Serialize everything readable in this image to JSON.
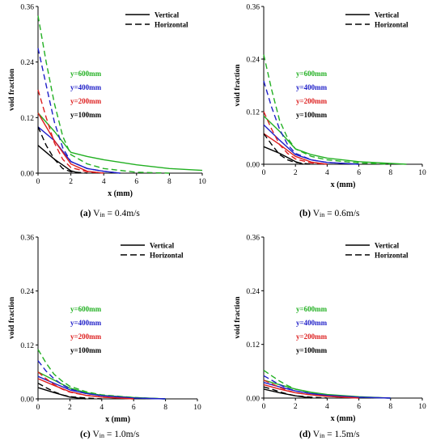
{
  "colors": {
    "y600": "#22b022",
    "y400": "#1f1fc8",
    "y200": "#dd1f1f",
    "y100": "#000000"
  },
  "chart_data": [
    {
      "type": "line",
      "caption": {
        "letter": "(a)",
        "v": "V",
        "sub": "in",
        "value": " = 0.4m/s"
      },
      "xlabel": "x (mm)",
      "ylabel": "void fraction",
      "xlim": [
        0,
        10
      ],
      "ylim": [
        0,
        0.36
      ],
      "xticks": [
        "0",
        "2",
        "4",
        "6",
        "8",
        "10"
      ],
      "yticks": [
        "0.00",
        "0.12",
        "0.24",
        "0.36"
      ],
      "legend": {
        "position": "top-right",
        "items": [
          {
            "label": "Vertical",
            "style": "solid"
          },
          {
            "label": "Horizontal",
            "style": "dashed"
          }
        ]
      },
      "labels": [
        "y=600mm",
        "y=400mm",
        "y=200mm",
        "y=100mm"
      ],
      "series": [
        {
          "key": "y600",
          "style": "solid",
          "x": [
            0,
            1,
            2,
            3,
            4,
            6,
            8,
            10
          ],
          "y": [
            0.13,
            0.09,
            0.045,
            0.036,
            0.029,
            0.018,
            0.01,
            0.006
          ]
        },
        {
          "key": "y600",
          "style": "dashed",
          "x": [
            0,
            0.5,
            1,
            1.5,
            2,
            3,
            4,
            6,
            8
          ],
          "y": [
            0.34,
            0.24,
            0.15,
            0.08,
            0.04,
            0.02,
            0.01,
            0.002,
            0
          ]
        },
        {
          "key": "y400",
          "style": "solid",
          "x": [
            0,
            1,
            2,
            3,
            4,
            5
          ],
          "y": [
            0.1,
            0.07,
            0.025,
            0.01,
            0.004,
            0
          ]
        },
        {
          "key": "y400",
          "style": "dashed",
          "x": [
            0,
            0.5,
            1,
            1.5,
            2,
            3,
            4,
            5
          ],
          "y": [
            0.27,
            0.19,
            0.11,
            0.055,
            0.025,
            0.01,
            0.004,
            0
          ]
        },
        {
          "key": "y200",
          "style": "solid",
          "x": [
            0,
            1,
            2,
            3,
            4
          ],
          "y": [
            0.13,
            0.07,
            0.02,
            0.004,
            0
          ]
        },
        {
          "key": "y200",
          "style": "dashed",
          "x": [
            0,
            0.5,
            1,
            1.5,
            2,
            3,
            4
          ],
          "y": [
            0.18,
            0.12,
            0.065,
            0.03,
            0.012,
            0.003,
            0
          ]
        },
        {
          "key": "y100",
          "style": "solid",
          "x": [
            0,
            1,
            2,
            2.5
          ],
          "y": [
            0.06,
            0.03,
            0.005,
            0
          ]
        },
        {
          "key": "y100",
          "style": "dashed",
          "x": [
            0,
            0.5,
            1,
            1.5,
            2,
            3
          ],
          "y": [
            0.1,
            0.06,
            0.03,
            0.01,
            0.003,
            0
          ]
        }
      ]
    },
    {
      "type": "line",
      "caption": {
        "letter": "(b)",
        "v": "V",
        "sub": "in",
        "value": " = 0.6m/s"
      },
      "xlabel": "x (mm)",
      "ylabel": "void fraction",
      "xlim": [
        0,
        10
      ],
      "ylim": [
        0,
        0.36
      ],
      "xticks": [
        "0",
        "2",
        "4",
        "6",
        "8",
        "10"
      ],
      "yticks": [
        "0.00",
        "0.12",
        "0.24",
        "0.36"
      ],
      "legend": {
        "position": "top-right",
        "items": [
          {
            "label": "Vertical",
            "style": "solid"
          },
          {
            "label": "Horizontal",
            "style": "dashed"
          }
        ]
      },
      "labels": [
        "y=600mm",
        "y=400mm",
        "y=200mm",
        "y=100mm"
      ],
      "series": [
        {
          "key": "y600",
          "style": "solid",
          "x": [
            0,
            1,
            2,
            3,
            4,
            6,
            8,
            9
          ],
          "y": [
            0.11,
            0.075,
            0.035,
            0.022,
            0.014,
            0.006,
            0.002,
            0
          ]
        },
        {
          "key": "y600",
          "style": "dashed",
          "x": [
            0,
            0.5,
            1,
            1.5,
            2,
            3,
            4,
            6,
            8
          ],
          "y": [
            0.25,
            0.17,
            0.1,
            0.06,
            0.035,
            0.018,
            0.01,
            0.003,
            0
          ]
        },
        {
          "key": "y400",
          "style": "solid",
          "x": [
            0,
            1,
            2,
            3,
            4,
            6
          ],
          "y": [
            0.09,
            0.055,
            0.022,
            0.01,
            0.004,
            0
          ]
        },
        {
          "key": "y400",
          "style": "dashed",
          "x": [
            0,
            0.5,
            1,
            1.5,
            2,
            3,
            4,
            6
          ],
          "y": [
            0.19,
            0.13,
            0.08,
            0.045,
            0.025,
            0.01,
            0.004,
            0
          ]
        },
        {
          "key": "y200",
          "style": "solid",
          "x": [
            0,
            1,
            2,
            3,
            4
          ],
          "y": [
            0.07,
            0.045,
            0.018,
            0.005,
            0
          ]
        },
        {
          "key": "y200",
          "style": "dashed",
          "x": [
            0,
            0.5,
            1,
            1.5,
            2,
            3,
            4
          ],
          "y": [
            0.12,
            0.08,
            0.045,
            0.025,
            0.012,
            0.003,
            0
          ]
        },
        {
          "key": "y100",
          "style": "solid",
          "x": [
            0,
            1,
            2,
            2.5
          ],
          "y": [
            0.04,
            0.025,
            0.006,
            0
          ]
        },
        {
          "key": "y100",
          "style": "dashed",
          "x": [
            0,
            0.5,
            1,
            1.5,
            2,
            3
          ],
          "y": [
            0.07,
            0.045,
            0.022,
            0.01,
            0.004,
            0
          ]
        }
      ]
    },
    {
      "type": "line",
      "caption": {
        "letter": "(c)",
        "v": "V",
        "sub": "in",
        "value": " = 1.0m/s"
      },
      "xlabel": "x (mm)",
      "ylabel": "void fraction",
      "xlim": [
        0,
        10
      ],
      "ylim": [
        0,
        0.36
      ],
      "xticks": [
        "0",
        "2",
        "4",
        "6",
        "8",
        "10"
      ],
      "yticks": [
        "0.00",
        "0.12",
        "0.24",
        "0.36"
      ],
      "legend": {
        "position": "top-right",
        "items": [
          {
            "label": "Vertical",
            "style": "solid"
          },
          {
            "label": "Horizontal",
            "style": "dashed"
          }
        ]
      },
      "labels": [
        "y=600mm",
        "y=400mm",
        "y=200mm",
        "y=100mm"
      ],
      "series": [
        {
          "key": "y600",
          "style": "solid",
          "x": [
            0,
            1,
            2,
            3,
            4,
            6,
            8
          ],
          "y": [
            0.06,
            0.042,
            0.024,
            0.014,
            0.008,
            0.003,
            0
          ]
        },
        {
          "key": "y600",
          "style": "dashed",
          "x": [
            0,
            0.5,
            1,
            1.5,
            2,
            3,
            4,
            6,
            8
          ],
          "y": [
            0.11,
            0.08,
            0.055,
            0.04,
            0.028,
            0.016,
            0.009,
            0.003,
            0
          ]
        },
        {
          "key": "y400",
          "style": "solid",
          "x": [
            0,
            1,
            2,
            3,
            4,
            6,
            8
          ],
          "y": [
            0.05,
            0.035,
            0.02,
            0.012,
            0.007,
            0.002,
            0
          ]
        },
        {
          "key": "y400",
          "style": "dashed",
          "x": [
            0,
            0.5,
            1,
            1.5,
            2,
            3,
            4,
            6,
            8
          ],
          "y": [
            0.085,
            0.062,
            0.045,
            0.032,
            0.022,
            0.012,
            0.007,
            0.002,
            0
          ]
        },
        {
          "key": "y200",
          "style": "solid",
          "x": [
            0,
            1,
            2,
            3,
            4,
            6
          ],
          "y": [
            0.045,
            0.03,
            0.016,
            0.008,
            0.004,
            0
          ]
        },
        {
          "key": "y200",
          "style": "dashed",
          "x": [
            0,
            0.5,
            1,
            1.5,
            2,
            3,
            4,
            6
          ],
          "y": [
            0.06,
            0.045,
            0.032,
            0.022,
            0.015,
            0.008,
            0.004,
            0
          ]
        },
        {
          "key": "y100",
          "style": "solid",
          "x": [
            0,
            1,
            2,
            3
          ],
          "y": [
            0.025,
            0.014,
            0.004,
            0
          ]
        },
        {
          "key": "y100",
          "style": "dashed",
          "x": [
            0,
            0.5,
            1,
            1.5,
            2,
            3,
            4
          ],
          "y": [
            0.035,
            0.025,
            0.016,
            0.009,
            0.005,
            0.002,
            0
          ]
        }
      ]
    },
    {
      "type": "line",
      "caption": {
        "letter": "(d)",
        "v": "V",
        "sub": "in",
        "value": " = 1.5m/s"
      },
      "xlabel": "x (mm)",
      "ylabel": "void fraction",
      "xlim": [
        0,
        10
      ],
      "ylim": [
        0,
        0.36
      ],
      "xticks": [
        "0",
        "2",
        "4",
        "6",
        "8",
        "10"
      ],
      "yticks": [
        "0.00",
        "0.12",
        "0.24",
        "0.36"
      ],
      "legend": {
        "position": "top-right",
        "items": [
          {
            "label": "Vertical",
            "style": "solid"
          },
          {
            "label": "Horizontal",
            "style": "dashed"
          }
        ]
      },
      "labels": [
        "y=600mm",
        "y=400mm",
        "y=200mm",
        "y=100mm"
      ],
      "series": [
        {
          "key": "y600",
          "style": "solid",
          "x": [
            0,
            1,
            2,
            3,
            4,
            6,
            8
          ],
          "y": [
            0.04,
            0.03,
            0.02,
            0.013,
            0.008,
            0.003,
            0
          ]
        },
        {
          "key": "y600",
          "style": "dashed",
          "x": [
            0,
            0.5,
            1,
            1.5,
            2,
            3,
            4,
            6,
            8
          ],
          "y": [
            0.062,
            0.05,
            0.038,
            0.028,
            0.02,
            0.012,
            0.007,
            0.002,
            0
          ]
        },
        {
          "key": "y400",
          "style": "solid",
          "x": [
            0,
            1,
            2,
            3,
            4,
            6,
            8
          ],
          "y": [
            0.035,
            0.025,
            0.016,
            0.01,
            0.006,
            0.002,
            0
          ]
        },
        {
          "key": "y400",
          "style": "dashed",
          "x": [
            0,
            0.5,
            1,
            1.5,
            2,
            3,
            4,
            6,
            8
          ],
          "y": [
            0.05,
            0.04,
            0.03,
            0.022,
            0.016,
            0.01,
            0.006,
            0.002,
            0
          ]
        },
        {
          "key": "y200",
          "style": "solid",
          "x": [
            0,
            1,
            2,
            3,
            4,
            6
          ],
          "y": [
            0.03,
            0.02,
            0.012,
            0.007,
            0.004,
            0
          ]
        },
        {
          "key": "y200",
          "style": "dashed",
          "x": [
            0,
            0.5,
            1,
            1.5,
            2,
            3,
            4,
            6
          ],
          "y": [
            0.04,
            0.032,
            0.024,
            0.017,
            0.012,
            0.007,
            0.004,
            0
          ]
        },
        {
          "key": "y100",
          "style": "solid",
          "x": [
            0,
            1,
            2,
            3
          ],
          "y": [
            0.02,
            0.012,
            0.005,
            0
          ]
        },
        {
          "key": "y100",
          "style": "dashed",
          "x": [
            0,
            0.5,
            1,
            1.5,
            2,
            3,
            4
          ],
          "y": [
            0.025,
            0.02,
            0.014,
            0.009,
            0.005,
            0.002,
            0
          ]
        }
      ]
    }
  ]
}
